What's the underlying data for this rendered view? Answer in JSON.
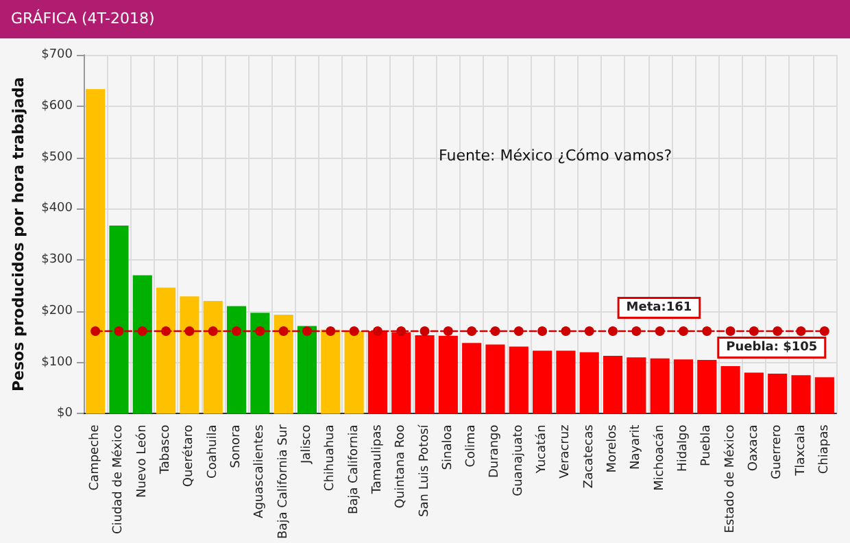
{
  "chart_data": {
    "type": "bar",
    "title": "GRÁFICA (4T-2018)",
    "ylabel": "Pesos producidos por hora trabajada",
    "categories": [
      "Campeche",
      "Ciudad de México",
      "Nuevo León",
      "Tabasco",
      "Querétaro",
      "Coahuila",
      "Sonora",
      "Aguascalientes",
      "Baja California Sur",
      "Jalisco",
      "Chihuahua",
      "Baja California",
      "Tamaulipas",
      "Quintana Roo",
      "San Luis Potosí",
      "Sinaloa",
      "Colima",
      "Durango",
      "Guanajuato",
      "Yucatán",
      "Veracruz",
      "Zacatecas",
      "Morelos",
      "Nayarit",
      "Michoacán",
      "Hidalgo",
      "Puebla",
      "Estado de México",
      "Oaxaca",
      "Guerrero",
      "Tlaxcala",
      "Chiapas"
    ],
    "series": [
      {
        "values": [
          633,
          367,
          270,
          246,
          229,
          220,
          210,
          197,
          193,
          171,
          164,
          161,
          161,
          159,
          153,
          152,
          138,
          135,
          131,
          123,
          123,
          120,
          113,
          110,
          108,
          106,
          105,
          93,
          80,
          78,
          75,
          71
        ],
        "colors": [
          "#ffc000",
          "#00b000",
          "#00b000",
          "#ffc000",
          "#ffc000",
          "#ffc000",
          "#00b000",
          "#00b000",
          "#ffc000",
          "#00b000",
          "#ffc000",
          "#ffc000",
          "#ff0000",
          "#ff0000",
          "#ff0000",
          "#ff0000",
          "#ff0000",
          "#ff0000",
          "#ff0000",
          "#ff0000",
          "#ff0000",
          "#ff0000",
          "#ff0000",
          "#ff0000",
          "#ff0000",
          "#ff0000",
          "#ff0000",
          "#ff0000",
          "#ff0000",
          "#ff0000",
          "#ff0000",
          "#ff0000"
        ]
      },
      {
        "type": "line",
        "color": "#cc0000",
        "marker": "circle",
        "line_style": "dashed",
        "values": [
          161,
          161,
          161,
          161,
          161,
          161,
          161,
          161,
          161,
          161,
          161,
          161,
          161,
          161,
          161,
          161,
          161,
          161,
          161,
          161,
          161,
          161,
          161,
          161,
          161,
          161,
          161,
          161,
          161,
          161,
          161,
          161
        ]
      }
    ],
    "ylim": [
      0,
      700
    ],
    "yticks": [
      {
        "value": 0,
        "label": "$0"
      },
      {
        "value": 100,
        "label": "$100"
      },
      {
        "value": 200,
        "label": "$200"
      },
      {
        "value": 300,
        "label": "$300"
      },
      {
        "value": 400,
        "label": "$400"
      },
      {
        "value": 500,
        "label": "$500"
      },
      {
        "value": 600,
        "label": "$600"
      },
      {
        "value": 700,
        "label": "$700"
      }
    ],
    "grid": true,
    "annotations": [
      "Fuente: México ¿Cómo vamos?",
      {
        "text": "Meta:161",
        "x": "Puebla",
        "y": 161
      },
      {
        "text": "Puebla: $105",
        "x": "Puebla",
        "y": 105
      }
    ]
  }
}
